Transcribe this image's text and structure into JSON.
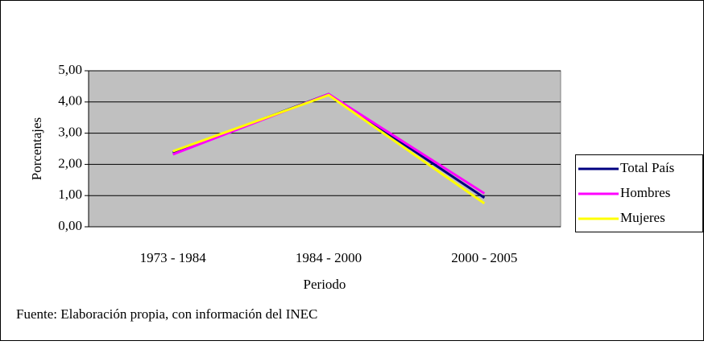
{
  "chart_data": {
    "type": "line",
    "categories": [
      "1973 - 1984",
      "1984 - 2000",
      "2000 - 2005"
    ],
    "series": [
      {
        "name": "Total País",
        "color": "#000080",
        "values": [
          2.37,
          4.25,
          0.93
        ]
      },
      {
        "name": "Hombres",
        "color": "#ff00ff",
        "values": [
          2.32,
          4.25,
          1.07
        ]
      },
      {
        "name": "Mujeres",
        "color": "#ffff00",
        "values": [
          2.42,
          4.22,
          0.75
        ]
      }
    ],
    "ylim": [
      0,
      5
    ],
    "yticks": [
      {
        "value": 0,
        "label": "0,00"
      },
      {
        "value": 1,
        "label": "1,00"
      },
      {
        "value": 2,
        "label": "2,00"
      },
      {
        "value": 3,
        "label": "3,00"
      },
      {
        "value": 4,
        "label": "4,00"
      },
      {
        "value": 5,
        "label": "5,00"
      }
    ],
    "grid": true,
    "ylabel": "Porcentajes",
    "xlabel": "Periodo",
    "note": "Fuente: Elaboración propia, con información del INEC",
    "legend": "right"
  }
}
